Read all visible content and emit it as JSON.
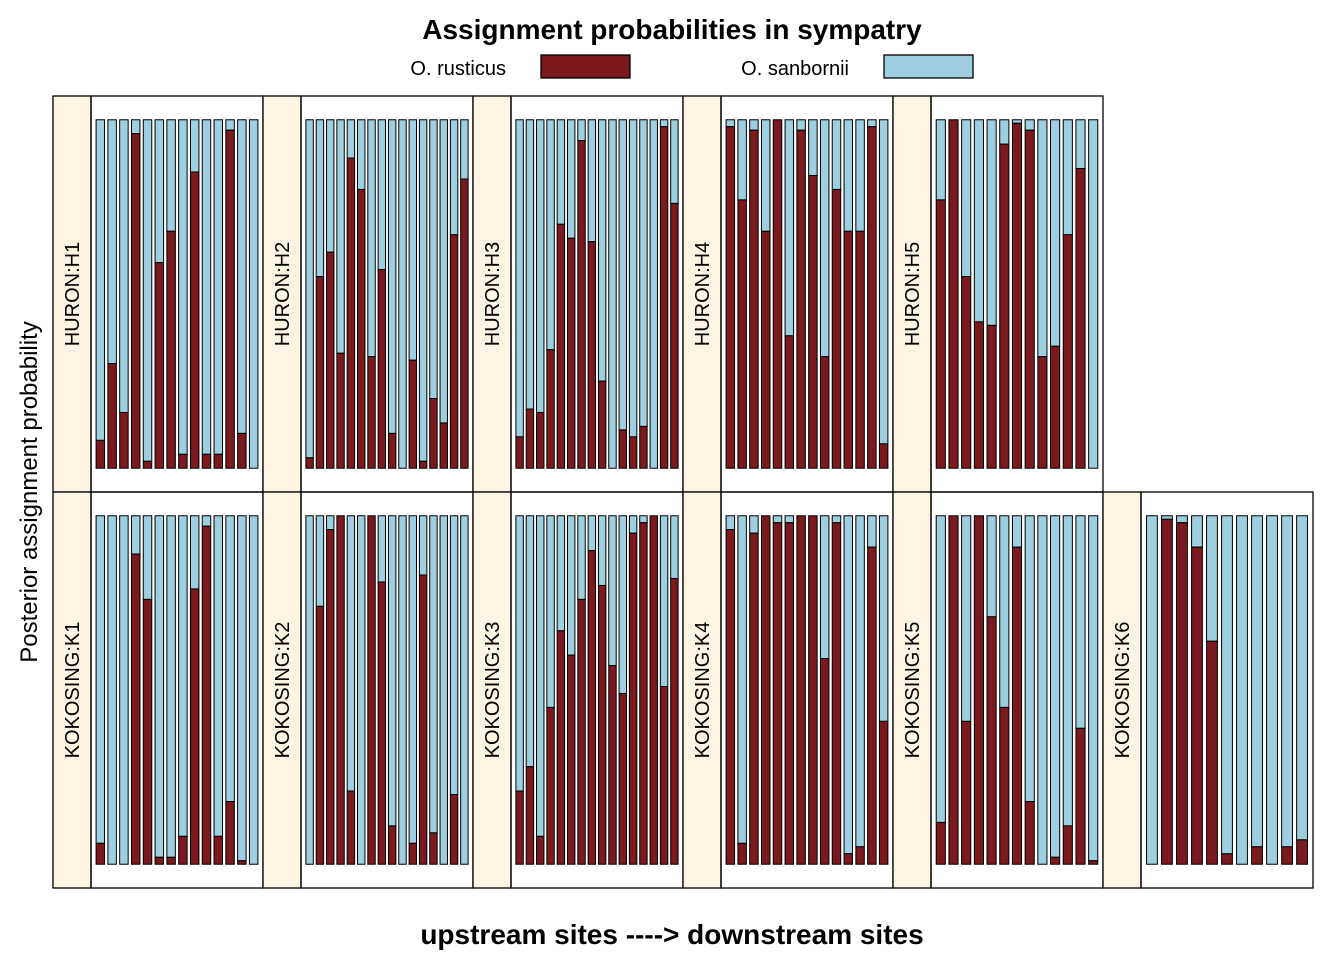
{
  "chart_data": {
    "type": "bar",
    "stacked": true,
    "title": "Assignment probabilities in sympatry",
    "xlabel": "upstream sites ----> downstream sites",
    "ylabel": "Posterior assignment probability",
    "ylim": [
      0,
      1
    ],
    "legend": {
      "placement": "top",
      "entries": [
        {
          "name": "O. rusticus",
          "color": "#7b1a1e"
        },
        {
          "name": "O. sanbornii",
          "color": "#9ecfe0"
        }
      ]
    },
    "strip_color": "#fdf4e3",
    "panels": [
      {
        "label": "HURON:H1",
        "rusticus": [
          0.08,
          0.3,
          0.16,
          0.96,
          0.02,
          0.59,
          0.68,
          0.04,
          0.85,
          0.04,
          0.04,
          0.97,
          0.1,
          0.0
        ]
      },
      {
        "label": "HURON:H2",
        "rusticus": [
          0.03,
          0.55,
          0.62,
          0.33,
          0.89,
          0.8,
          0.32,
          0.57,
          0.1,
          0.0,
          0.31,
          0.02,
          0.2,
          0.13,
          0.67,
          0.83
        ]
      },
      {
        "label": "HURON:H3",
        "rusticus": [
          0.09,
          0.17,
          0.16,
          0.34,
          0.7,
          0.66,
          0.94,
          0.65,
          0.25,
          0.0,
          0.11,
          0.09,
          0.12,
          0.0,
          0.98,
          0.76
        ]
      },
      {
        "label": "HURON:H4",
        "rusticus": [
          0.98,
          0.77,
          0.97,
          0.68,
          1.0,
          0.38,
          0.97,
          0.84,
          0.32,
          0.8,
          0.68,
          0.68,
          0.98,
          0.07
        ]
      },
      {
        "label": "HURON:H5",
        "rusticus": [
          0.77,
          1.0,
          0.55,
          0.42,
          0.41,
          0.93,
          0.99,
          0.97,
          0.32,
          0.35,
          0.67,
          0.86,
          0.0
        ]
      }
    ],
    "panels_row2": [
      {
        "label": "KOKOSING:K1",
        "rusticus": [
          0.06,
          0.0,
          0.0,
          0.89,
          0.76,
          0.02,
          0.02,
          0.08,
          0.79,
          0.97,
          0.08,
          0.18,
          0.01,
          0.0
        ]
      },
      {
        "label": "KOKOSING:K2",
        "rusticus": [
          0.0,
          0.74,
          0.96,
          1.0,
          0.21,
          0.0,
          1.0,
          0.81,
          0.11,
          0.0,
          0.06,
          0.83,
          0.09,
          0.0,
          0.2,
          0.0
        ]
      },
      {
        "label": "KOKOSING:K3",
        "rusticus": [
          0.21,
          0.28,
          0.08,
          0.45,
          0.67,
          0.6,
          0.76,
          0.9,
          0.8,
          0.57,
          0.49,
          0.95,
          0.98,
          1.0,
          0.51,
          0.82
        ]
      },
      {
        "label": "KOKOSING:K4",
        "rusticus": [
          0.96,
          0.06,
          0.95,
          1.0,
          0.98,
          0.98,
          1.0,
          1.0,
          0.59,
          0.98,
          0.03,
          0.05,
          0.91,
          0.41
        ]
      },
      {
        "label": "KOKOSING:K5",
        "rusticus": [
          0.12,
          1.0,
          0.41,
          1.0,
          0.71,
          0.45,
          0.91,
          0.18,
          0.0,
          0.02,
          0.11,
          0.39,
          0.01
        ]
      },
      {
        "label": "KOKOSING:K6",
        "rusticus": [
          0.0,
          0.99,
          0.98,
          0.91,
          0.64,
          0.03,
          0.0,
          0.05,
          0.0,
          0.05,
          0.07
        ]
      }
    ]
  }
}
